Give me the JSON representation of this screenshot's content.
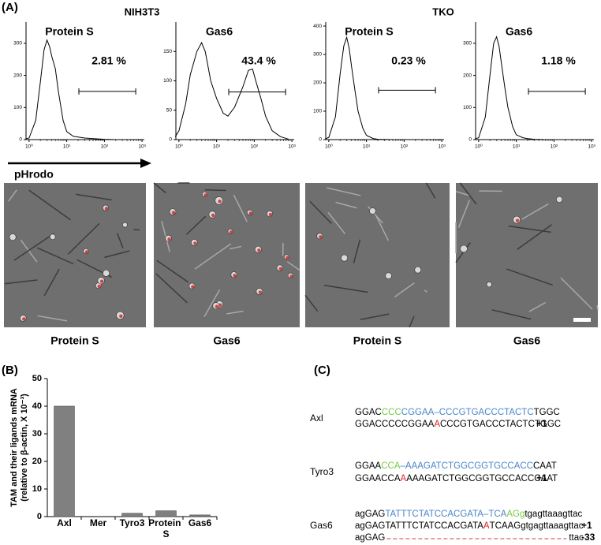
{
  "panels": {
    "a": "(A)",
    "b": "(B)",
    "c": "(C)"
  },
  "group_labels": [
    "NIH3T3",
    "TKO"
  ],
  "arrow_label": "pHrodo",
  "image_captions": [
    "Protein S",
    "Gas6",
    "Protein S",
    "Gas6"
  ],
  "chart_data": [
    {
      "type": "line",
      "title": "Protein S",
      "annotation": "2.81 %",
      "x": [
        0.8,
        1,
        1.5,
        2,
        2.5,
        3,
        3.5,
        4,
        5,
        6,
        8,
        10,
        15,
        20,
        30,
        50,
        100,
        200
      ],
      "series": [
        {
          "color": "#000000",
          "values": [
            2,
            5,
            60,
            180,
            280,
            310,
            290,
            260,
            220,
            150,
            60,
            25,
            10,
            8,
            5,
            3,
            1,
            0
          ]
        }
      ],
      "xscale": "log",
      "xlim": [
        0.83,
        1150
      ],
      "xticks": [
        {
          "value": 1,
          "label": "10⁰"
        },
        {
          "value": 10,
          "label": "10¹"
        },
        {
          "value": 100,
          "label": "10²"
        },
        {
          "value": 1000,
          "label": "10³"
        }
      ],
      "ylim": [
        0,
        366
      ],
      "yticks": [
        0,
        100,
        200,
        300
      ],
      "gate": {
        "x": [
          21,
          680
        ],
        "y": 150
      }
    },
    {
      "type": "line",
      "title": "Gas6",
      "annotation": "43.4 %",
      "x": [
        0.8,
        1,
        1.5,
        2,
        3,
        4,
        5,
        7,
        10,
        15,
        20,
        30,
        50,
        70,
        90,
        110,
        150,
        200,
        300,
        500,
        800
      ],
      "series": [
        {
          "color": "#000000",
          "values": [
            5,
            15,
            60,
            110,
            150,
            165,
            150,
            100,
            70,
            45,
            40,
            55,
            90,
            118,
            120,
            100,
            70,
            40,
            15,
            5,
            1
          ]
        }
      ],
      "xscale": "log",
      "xlim": [
        0.83,
        1150
      ],
      "xticks": [
        {
          "value": 1,
          "label": "10⁰"
        },
        {
          "value": 10,
          "label": "10¹"
        },
        {
          "value": 100,
          "label": "10²"
        },
        {
          "value": 1000,
          "label": "10³"
        }
      ],
      "ylim": [
        0,
        200
      ],
      "yticks": [
        0,
        50,
        100,
        150
      ],
      "gate": {
        "x": [
          21,
          680
        ],
        "y": 81
      }
    },
    {
      "type": "line",
      "title": "Protein S",
      "annotation": "0.23 %",
      "x": [
        0.8,
        1,
        1.5,
        2,
        2.5,
        3,
        3.5,
        4,
        5,
        6,
        8,
        10,
        15,
        20,
        50
      ],
      "series": [
        {
          "color": "#000000",
          "values": [
            2,
            8,
            80,
            230,
            330,
            360,
            320,
            260,
            170,
            100,
            40,
            15,
            4,
            1,
            0
          ]
        }
      ],
      "xscale": "log",
      "xlim": [
        0.83,
        1150
      ],
      "xticks": [
        {
          "value": 1,
          "label": "10⁰"
        },
        {
          "value": 10,
          "label": "10¹"
        },
        {
          "value": 100,
          "label": "10²"
        },
        {
          "value": 1000,
          "label": "10³"
        }
      ],
      "ylim": [
        0,
        414
      ],
      "yticks": [
        0,
        100,
        200,
        300,
        400
      ],
      "gate": {
        "x": [
          21,
          680
        ],
        "y": 174
      }
    },
    {
      "type": "line",
      "title": "Gas6",
      "annotation": "1.18 %",
      "x": [
        0.8,
        1,
        1.5,
        2,
        2.5,
        3,
        3.5,
        4,
        5,
        6,
        8,
        10,
        15,
        20,
        30,
        60
      ],
      "series": [
        {
          "color": "#000000",
          "values": [
            2,
            6,
            70,
            200,
            300,
            320,
            290,
            240,
            160,
            100,
            40,
            15,
            6,
            3,
            1,
            0
          ]
        }
      ],
      "xscale": "log",
      "xlim": [
        0.83,
        1150
      ],
      "xticks": [
        {
          "value": 1,
          "label": "10⁰"
        },
        {
          "value": 10,
          "label": "10¹"
        },
        {
          "value": 100,
          "label": "10²"
        },
        {
          "value": 1000,
          "label": "10³"
        }
      ],
      "ylim": [
        0,
        366
      ],
      "yticks": [
        0,
        100,
        200,
        300
      ],
      "gate": {
        "x": [
          21,
          680
        ],
        "y": 150
      }
    },
    {
      "type": "bar",
      "y_label": [
        "TAM and their  ligands mRNA",
        "(relative to β-actin, X 10⁻³)"
      ],
      "categories": [
        "Axl",
        "Mer",
        "Tyro3",
        "Protein S",
        "Gas6"
      ],
      "values": [
        40,
        0,
        1.2,
        2.1,
        0.6
      ],
      "color": "#808080",
      "ylim": [
        0,
        50
      ],
      "yticks": [
        0,
        10,
        20,
        30,
        40,
        50
      ]
    }
  ],
  "sequences": [
    {
      "gene": "Axl",
      "lines": [
        {
          "segments": [
            {
              "text": "GGAC",
              "color": "#000000"
            },
            {
              "text": "CCC",
              "color": "#7ac943"
            },
            {
              "text": "CGGAA–CCCGTGACCCTACTC",
              "color": "#4a86c8"
            },
            {
              "text": "TGGC",
              "color": "#000000"
            }
          ]
        },
        {
          "segments": [
            {
              "text": "GGACCCCCGGAA",
              "color": "#000000"
            },
            {
              "text": "A",
              "color": "#e02020"
            },
            {
              "text": "CCCGTGACCCTACTCTGGC",
              "color": "#000000"
            }
          ],
          "edit": "+1"
        }
      ]
    },
    {
      "gene": "Tyro3",
      "lines": [
        {
          "segments": [
            {
              "text": "GGAA",
              "color": "#000000"
            },
            {
              "text": "CCA",
              "color": "#7ac943"
            },
            {
              "text": "–AAAGATCTGGCGGTGCCACC",
              "color": "#4a86c8"
            },
            {
              "text": "CAAT",
              "color": "#000000"
            }
          ]
        },
        {
          "segments": [
            {
              "text": "GGAACCA",
              "color": "#000000"
            },
            {
              "text": "A",
              "color": "#e02020"
            },
            {
              "text": "AAAGATCTGGCGGTGCCACCCAAT",
              "color": "#000000"
            }
          ],
          "edit": "+1"
        }
      ]
    },
    {
      "gene": "Gas6",
      "lines": [
        {
          "segments": [
            {
              "text": "agGAG",
              "color": "#000000"
            },
            {
              "text": "TATTTCTATCCACGATA–TCA",
              "color": "#4a86c8"
            },
            {
              "text": "AGg",
              "color": "#7ac943"
            },
            {
              "text": "tgagttaaagttac",
              "color": "#000000"
            }
          ]
        },
        {
          "segments": [
            {
              "text": "agGAGTATTTCTATCCACGATA",
              "color": "#000000"
            },
            {
              "text": "A",
              "color": "#e02020"
            },
            {
              "text": "TCAAGgtgagttaaagttac",
              "color": "#000000"
            }
          ],
          "edit": "+1"
        },
        {
          "segments": [
            {
              "text": "agGAG",
              "color": "#000000"
            },
            {
              "deleted": true,
              "color": "#d04040"
            },
            {
              "text": "ttac",
              "color": "#000000"
            }
          ],
          "edit": "-33"
        }
      ]
    }
  ]
}
